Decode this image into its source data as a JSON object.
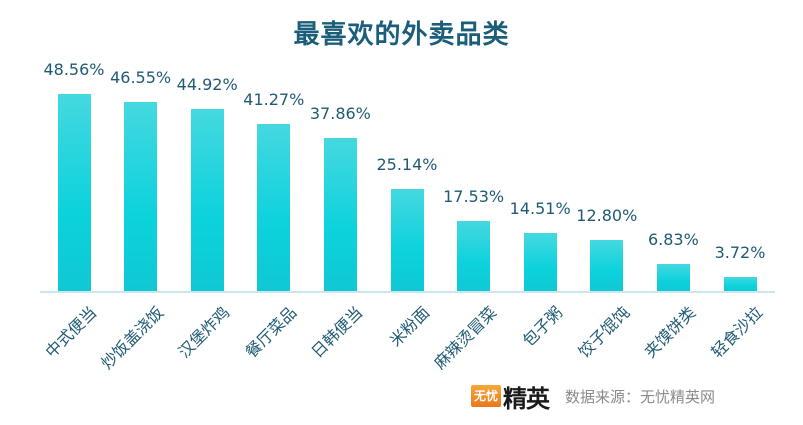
{
  "chart_data": {
    "type": "bar",
    "title": "最喜欢的外卖品类",
    "categories": [
      "中式便当",
      "炒饭盖浇饭",
      "汉堡炸鸡",
      "餐厅菜品",
      "日韩便当",
      "米粉面",
      "麻辣烫冒菜",
      "包子粥",
      "饺子馄饨",
      "夹馍饼类",
      "轻食沙拉"
    ],
    "values": [
      48.56,
      46.55,
      44.92,
      41.27,
      37.86,
      25.14,
      17.53,
      14.51,
      12.8,
      6.83,
      3.72
    ],
    "labels": [
      "48.56%",
      "46.55%",
      "44.92%",
      "41.27%",
      "37.86%",
      "25.14%",
      "17.53%",
      "14.51%",
      "12.80%",
      "6.83%",
      "3.72%"
    ],
    "xlabel": "",
    "ylabel": "",
    "ylim": [
      0,
      50
    ],
    "grid": false,
    "legend": "none",
    "colors": {
      "bar_top": "#45d8e0",
      "bar_bottom": "#10c8d4",
      "label": "#1f5a73",
      "title": "#1a5e7a"
    }
  },
  "footer": {
    "logo_badge": "无忧",
    "logo_text": "精英",
    "source": "数据来源：无忧精英网"
  }
}
